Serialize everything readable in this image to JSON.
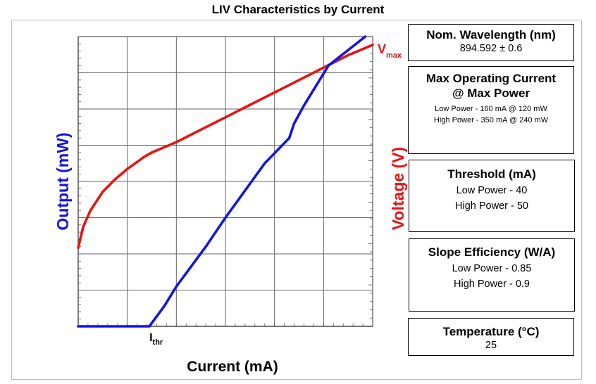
{
  "chart_data": {
    "type": "line",
    "title": "LIV Characteristics by Current",
    "xlabel": "Current (mA)",
    "ylabel_left": "Output (mW)",
    "ylabel_right": "Voltage (V)",
    "xlim": [
      0,
      6
    ],
    "ylim_left": [
      0,
      8
    ],
    "ylim_right": [
      0,
      7
    ],
    "grid": true,
    "series": [
      {
        "axis": "left",
        "color": "#1414e6",
        "x": [
          0,
          1.45,
          1.75,
          2.0,
          2.6,
          3.0,
          3.8,
          4.3,
          4.4,
          4.6,
          5.1,
          5.85
        ],
        "y": [
          0,
          0,
          0.55,
          1.1,
          2.2,
          3.0,
          4.5,
          5.2,
          5.6,
          6.1,
          7.2,
          8.1
        ]
      },
      {
        "axis": "right",
        "color": "#e61414",
        "x": [
          0,
          0.02,
          0.1,
          0.25,
          0.5,
          0.75,
          1.0,
          1.35,
          1.5,
          2.0,
          2.5,
          3.0,
          3.5,
          4.0,
          4.5,
          5.0,
          5.5,
          6.0
        ],
        "y": [
          1.9,
          2.0,
          2.4,
          2.8,
          3.25,
          3.55,
          3.8,
          4.1,
          4.2,
          4.45,
          4.75,
          5.05,
          5.35,
          5.65,
          5.95,
          6.25,
          6.55,
          6.8
        ]
      }
    ],
    "annotations": [
      {
        "text": "I",
        "sub": "thr",
        "x": 1.48
      },
      {
        "text": "V",
        "sub": "max"
      }
    ]
  },
  "boxes": {
    "wavelength": {
      "title": "Nom. Wavelength (nm)",
      "value": "894.592 ± 0.6"
    },
    "max_operating": {
      "title_line1": "Max Operating Current",
      "title_line2": "@ Max Power",
      "low": "Low Power - 160 mA @ 120 mW",
      "high": "High Power - 350 mA @ 240 mW"
    },
    "threshold": {
      "title": "Threshold (mA)",
      "low": "Low Power - 40",
      "high": "High Power - 50"
    },
    "slope": {
      "title": "Slope Efficiency (W/A)",
      "low": "Low Power - 0.85",
      "high": "High Power - 0.9"
    },
    "temperature": {
      "title": "Temperature (°C)",
      "value": "25"
    }
  }
}
